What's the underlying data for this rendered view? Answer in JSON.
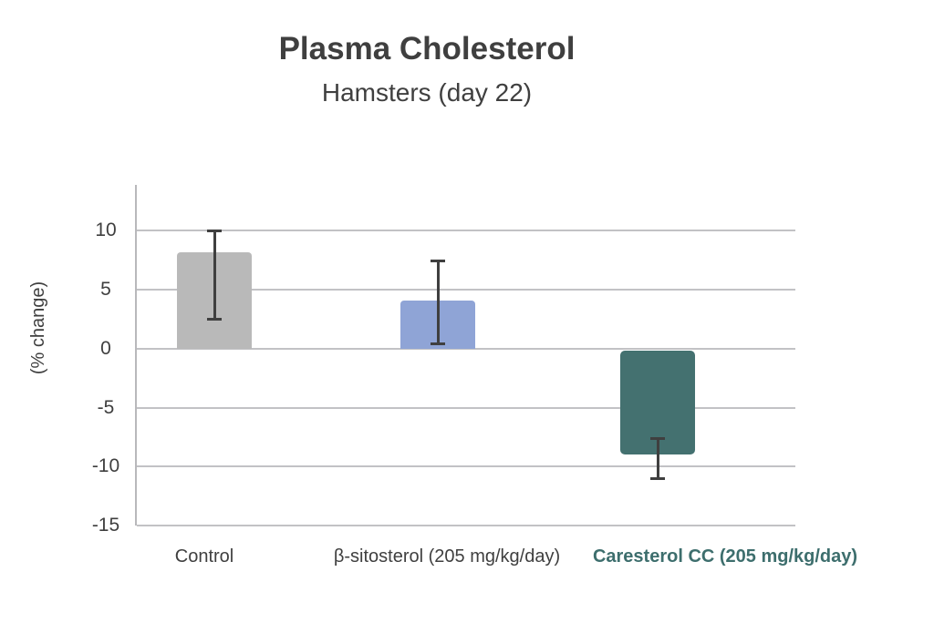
{
  "chart_data": {
    "type": "bar",
    "title": "Plasma Cholesterol",
    "subtitle": "Hamsters (day 22)",
    "ylabel": "(% change)",
    "xlabel": "",
    "yticks": [
      10,
      5,
      0,
      -5,
      -10,
      -15
    ],
    "ylim": [
      -15,
      13.9
    ],
    "grid": true,
    "legend": false,
    "categories": [
      "Control",
      "β-sitosterol (205 mg/kg/day)",
      "Caresterol CC (205 mg/kg/day)"
    ],
    "bars": [
      {
        "slug": "control",
        "label": "Control",
        "value": 8.2,
        "bar_start": 0,
        "error_low": 2.4,
        "error_high": 10.1,
        "color": "#b9b9b9",
        "label_color": "#3f3f3f",
        "label_bold": false
      },
      {
        "slug": "beta-sitosterol",
        "label": "β-sitosterol (205 mg/kg/day)",
        "value": 4.1,
        "bar_start": 0,
        "error_low": 0.3,
        "error_high": 7.6,
        "color": "#8fa4d6",
        "label_color": "#3f3f3f",
        "label_bold": false
      },
      {
        "slug": "caresterol-cc",
        "label": "Caresterol CC (205 mg/kg/day)",
        "value": -9.0,
        "bar_start": -0.2,
        "error_low": -11.1,
        "error_high": -7.5,
        "color": "#447170",
        "label_color": "#3d6e6d",
        "label_bold": true
      }
    ],
    "colors": {
      "error_bar": "#3f3f3f",
      "gridline": "#c2c2c5",
      "axis": "#b8b8bb",
      "text": "#3f3f3f",
      "background": "#ffffff",
      "accent_teal": "#3d6e6d"
    }
  }
}
